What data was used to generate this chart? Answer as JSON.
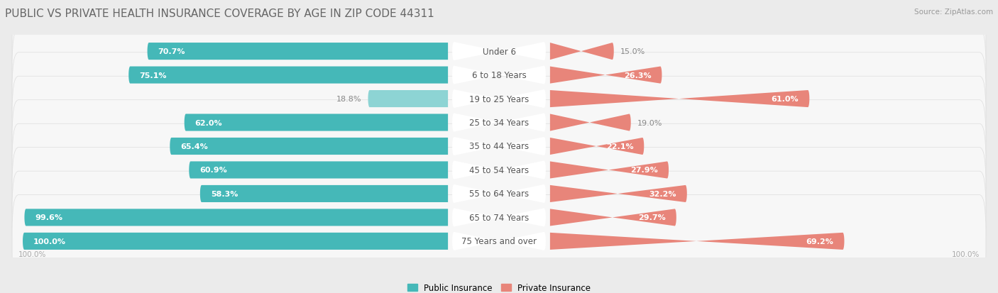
{
  "title": "PUBLIC VS PRIVATE HEALTH INSURANCE COVERAGE BY AGE IN ZIP CODE 44311",
  "source": "Source: ZipAtlas.com",
  "categories": [
    "Under 6",
    "6 to 18 Years",
    "19 to 25 Years",
    "25 to 34 Years",
    "35 to 44 Years",
    "45 to 54 Years",
    "55 to 64 Years",
    "65 to 74 Years",
    "75 Years and over"
  ],
  "public_values": [
    70.7,
    75.1,
    18.8,
    62.0,
    65.4,
    60.9,
    58.3,
    99.6,
    100.0
  ],
  "private_values": [
    15.0,
    26.3,
    61.0,
    19.0,
    22.1,
    27.9,
    32.2,
    29.7,
    69.2
  ],
  "public_color": "#45b8b8",
  "public_color_light": "#8dd4d4",
  "private_color": "#e8857a",
  "private_color_light": "#f0b0aa",
  "public_label": "Public Insurance",
  "private_label": "Private Insurance",
  "bg_color": "#ebebeb",
  "row_bg_color": "#f7f7f7",
  "row_border_color": "#dddddd",
  "center_label_bg": "#ffffff",
  "title_color": "#666666",
  "source_color": "#999999",
  "value_color_inside": "#ffffff",
  "value_color_outside": "#888888",
  "axis_label": "100.0%",
  "title_fontsize": 11,
  "label_fontsize": 8.5,
  "value_fontsize": 8.0,
  "axis_fontsize": 7.5
}
